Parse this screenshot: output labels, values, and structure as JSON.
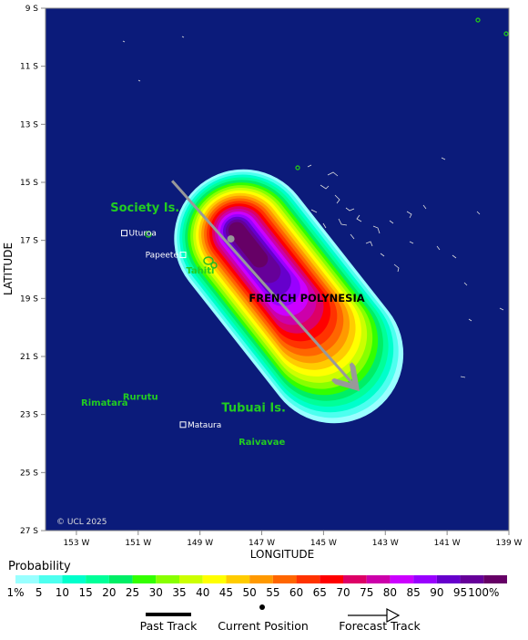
{
  "map": {
    "axis": {
      "xlabel": "LONGITUDE",
      "ylabel": "LATITUDE",
      "x_ticks": [
        "153 W",
        "151 W",
        "149 W",
        "147 W",
        "145 W",
        "143 W",
        "141 W",
        "139 W"
      ],
      "y_ticks": [
        "9 S",
        "11 S",
        "13 S",
        "15 S",
        "17 S",
        "19 S",
        "21 S",
        "23 S",
        "25 S",
        "27 S"
      ],
      "lon_range": [
        154,
        139
      ],
      "lat_range": [
        9,
        27
      ]
    },
    "region_label": "FRENCH POLYNESIA",
    "group_labels": [
      {
        "text": "Society Is.",
        "lon": 151.9,
        "lat": 16.0
      },
      {
        "text": "Tubuai Is.",
        "lon": 148.3,
        "lat": 22.9
      }
    ],
    "places": [
      {
        "name": "Uturoa",
        "lon": 151.45,
        "lat": 16.75,
        "marker": "square"
      },
      {
        "name": "Papeete",
        "lon": 149.55,
        "lat": 17.5,
        "marker": "square"
      },
      {
        "name": "Tahiti",
        "lon": 149.45,
        "lat": 18.05,
        "marker": "none"
      },
      {
        "name": "Rimatara",
        "lon": 152.85,
        "lat": 22.6,
        "marker": "none"
      },
      {
        "name": "Rurutu",
        "lon": 151.5,
        "lat": 22.4,
        "marker": "none"
      },
      {
        "name": "Mataura",
        "lon": 149.55,
        "lat": 23.35,
        "marker": "square"
      },
      {
        "name": "Raivavae",
        "lon": 147.75,
        "lat": 23.95,
        "marker": "none"
      }
    ],
    "copyright": "© UCL 2025",
    "colors": {
      "ocean": "#0b1b7a",
      "land": "#22bb22",
      "label_green": "#22cc22",
      "track": "#999999"
    },
    "forecast_track": {
      "start": {
        "lon": 149.9,
        "lat": 14.95
      },
      "current": {
        "lon": 148.0,
        "lat": 16.95
      },
      "end": {
        "lon": 144.0,
        "lat": 22.0
      }
    }
  },
  "legend": {
    "title": "Probability",
    "bins": [
      "1%",
      "5",
      "10",
      "15",
      "20",
      "25",
      "30",
      "35",
      "40",
      "45",
      "50",
      "55",
      "60",
      "65",
      "70",
      "75",
      "80",
      "85",
      "90",
      "95",
      "100%"
    ],
    "colors": [
      "#99ffff",
      "#4dffef",
      "#00ffcc",
      "#00ff99",
      "#00ee66",
      "#33ff00",
      "#88ff00",
      "#ccff00",
      "#ffff00",
      "#ffcc00",
      "#ff9900",
      "#ff6600",
      "#ff3300",
      "#ff0000",
      "#dd0066",
      "#cc00aa",
      "#cc00ff",
      "#9900ff",
      "#6600cc",
      "#660099",
      "#660066"
    ]
  },
  "key": {
    "past": "Past Track",
    "current": "Current Position",
    "forecast": "Forecast Track"
  }
}
